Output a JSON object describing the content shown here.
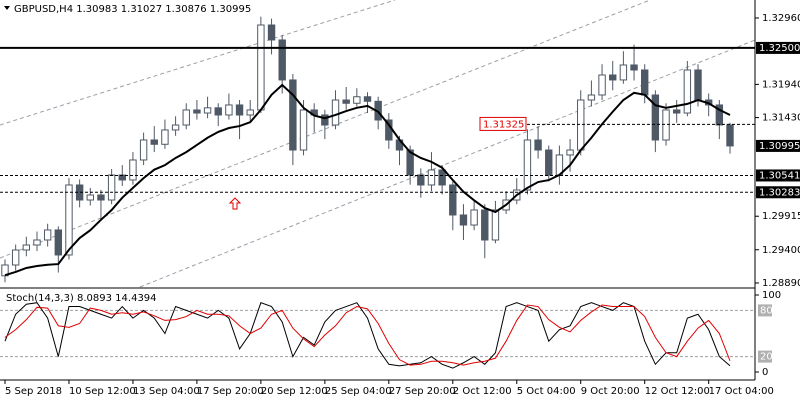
{
  "chart_data": [
    {
      "type": "candlestick",
      "title": "GBPUSD,H4  1.30983 1.31027 1.30876 1.30995",
      "categories": [
        "5 Sep 2018",
        null,
        null,
        null,
        null,
        null,
        "10 Sep 12:00",
        null,
        null,
        null,
        null,
        null,
        "13 Sep 04:00",
        null,
        null,
        null,
        null,
        null,
        "17 Sep 20:00",
        null,
        null,
        null,
        null,
        null,
        "20 Sep 12:00",
        null,
        null,
        null,
        null,
        null,
        "25 Sep 04:00",
        null,
        null,
        null,
        null,
        null,
        "27 Sep 20:00",
        null,
        null,
        null,
        null,
        null,
        "2 Oct 12:00",
        null,
        null,
        null,
        null,
        null,
        "5 Oct 04:00",
        null,
        null,
        null,
        null,
        null,
        "9 Oct 20:00",
        null,
        null,
        null,
        null,
        null,
        "12 Oct 12:00",
        null,
        null,
        null,
        null,
        null,
        "17 Oct 04:00",
        null,
        null
      ],
      "open": [
        1.29,
        1.29166,
        1.29396,
        1.29473,
        1.2955,
        1.29704,
        1.2932,
        1.30395,
        1.30164,
        1.30241,
        1.30164,
        1.30548,
        1.30472,
        1.30779,
        1.31086,
        1.3102,
        1.3124,
        1.31316,
        1.31547,
        1.315,
        1.3158,
        1.3147,
        1.31624,
        1.3147,
        1.31547,
        1.32852,
        1.32622,
        1.32008,
        1.30932,
        1.31547,
        1.3147,
        1.31316,
        1.317,
        1.3165,
        1.3175,
        1.3168,
        1.31393,
        1.31086,
        1.30932,
        1.30548,
        1.30395,
        1.30625,
        1.30395,
        1.29934,
        1.2978,
        1.30011,
        1.2955,
        1.30011,
        1.30164,
        1.30318,
        1.31086,
        1.30932,
        1.30548,
        1.30856,
        1.30932,
        1.317,
        1.31777,
        1.32084,
        1.32008,
        1.32238,
        1.32161,
        1.31777,
        1.31086,
        1.31547,
        1.315,
        1.32161,
        1.317,
        1.31624,
        1.31316
      ],
      "high": [
        1.2925,
        1.2948,
        1.296,
        1.2968,
        1.298,
        1.2976,
        1.305,
        1.3048,
        1.3035,
        1.3032,
        1.3064,
        1.307,
        1.309,
        1.312,
        1.313,
        1.314,
        1.3145,
        1.3165,
        1.317,
        1.3175,
        1.3165,
        1.318,
        1.317,
        1.317,
        1.3298,
        1.3295,
        1.327,
        1.321,
        1.317,
        1.3165,
        1.3155,
        1.3185,
        1.319,
        1.3188,
        1.3182,
        1.3175,
        1.315,
        1.3115,
        1.31,
        1.3065,
        1.309,
        1.307,
        1.3045,
        1.301,
        1.3015,
        1.301,
        1.3015,
        1.303,
        1.305,
        1.3125,
        1.313,
        1.31,
        1.31,
        1.311,
        1.3185,
        1.32,
        1.3225,
        1.323,
        1.3245,
        1.3255,
        1.3225,
        1.3185,
        1.3165,
        1.317,
        1.323,
        1.3225,
        1.318,
        1.317,
        1.3135
      ],
      "low": [
        1.289,
        1.2908,
        1.293,
        1.2938,
        1.2945,
        1.2905,
        1.2925,
        1.3005,
        1.3008,
        1.2985,
        1.301,
        1.3038,
        1.304,
        1.307,
        1.309,
        1.3095,
        1.3115,
        1.3125,
        1.314,
        1.3142,
        1.313,
        1.314,
        1.311,
        1.3138,
        1.315,
        1.324,
        1.318,
        1.307,
        1.3085,
        1.312,
        1.311,
        1.3125,
        1.3155,
        1.316,
        1.315,
        1.3125,
        1.3095,
        1.307,
        1.304,
        1.302,
        1.303,
        1.3025,
        1.297,
        1.2955,
        1.297,
        1.2927,
        1.295,
        1.2995,
        1.301,
        1.3025,
        1.308,
        1.3045,
        1.304,
        1.306,
        1.3085,
        1.316,
        1.317,
        1.3185,
        1.3195,
        1.32,
        1.3165,
        1.309,
        1.31,
        1.3135,
        1.3145,
        1.316,
        1.3145,
        1.311,
        1.30876
      ],
      "close": [
        1.29166,
        1.29396,
        1.29473,
        1.2955,
        1.29704,
        1.2932,
        1.30395,
        1.30164,
        1.30241,
        1.30164,
        1.30548,
        1.30472,
        1.30779,
        1.31086,
        1.3102,
        1.3124,
        1.31316,
        1.31547,
        1.315,
        1.3158,
        1.3147,
        1.31624,
        1.3147,
        1.31547,
        1.32852,
        1.32622,
        1.32008,
        1.30932,
        1.31547,
        1.3147,
        1.31316,
        1.317,
        1.3165,
        1.3175,
        1.3168,
        1.31393,
        1.31086,
        1.30932,
        1.30548,
        1.30395,
        1.30625,
        1.30395,
        1.29934,
        1.2978,
        1.30011,
        1.2955,
        1.30011,
        1.30164,
        1.30318,
        1.31086,
        1.30932,
        1.30548,
        1.30856,
        1.30932,
        1.317,
        1.31777,
        1.32084,
        1.32008,
        1.32238,
        1.32161,
        1.31777,
        1.31086,
        1.31547,
        1.315,
        1.32161,
        1.317,
        1.31624,
        1.31316,
        1.30995
      ],
      "candle_color": "#4f5966",
      "overlay": {
        "color": "#000000",
        "values": [
          1.2901,
          1.2906,
          1.2912,
          1.2915,
          1.2917,
          1.2918,
          1.294,
          1.2958,
          1.297,
          1.2986,
          1.3001,
          1.302,
          1.3035,
          1.305,
          1.3063,
          1.307,
          1.3081,
          1.309,
          1.3101,
          1.3112,
          1.3121,
          1.3127,
          1.313,
          1.3136,
          1.3155,
          1.3178,
          1.3193,
          1.3178,
          1.3158,
          1.3146,
          1.3142,
          1.3147,
          1.3153,
          1.3158,
          1.3161,
          1.3152,
          1.3132,
          1.3109,
          1.309,
          1.3081,
          1.3075,
          1.3066,
          1.3047,
          1.3029,
          1.3016,
          1.3004,
          1.2998,
          1.3009,
          1.3024,
          1.3035,
          1.3044,
          1.3047,
          1.3055,
          1.307,
          1.3093,
          1.3112,
          1.3133,
          1.3152,
          1.317,
          1.3181,
          1.3178,
          1.3162,
          1.3158,
          1.3161,
          1.3164,
          1.317,
          1.3165,
          1.3155,
          1.3147
        ]
      },
      "ylim": [
        1.28828,
        1.33236
      ],
      "yticks": [
        {
          "value": 1.3296,
          "label": "1.32960"
        },
        {
          "value": 1.3194,
          "label": "1.31940"
        },
        {
          "value": 1.3143,
          "label": "1.31430"
        },
        {
          "value": 1.29915,
          "label": "1.29915"
        },
        {
          "value": 1.294,
          "label": "1.29400"
        },
        {
          "value": 1.2889,
          "label": "1.28890"
        }
      ],
      "levels": [
        {
          "value": 1.325,
          "label": "1.32500",
          "style": "solid"
        },
        {
          "value": 1.30541,
          "label": "1.30541",
          "style": "dashed"
        },
        {
          "value": 1.30283,
          "label": "1.30283",
          "style": "dashed"
        }
      ],
      "price": {
        "value": 1.30995,
        "label": "1.30995"
      },
      "annotation": {
        "value": 1.31325,
        "label": "1.31325",
        "color": "#e00000"
      }
    },
    {
      "type": "line",
      "title": "Stoch(14,3,3) 8.0893 14.4394",
      "series": [
        {
          "color": "#000000",
          "values": [
            40,
            75,
            88,
            90,
            70,
            20,
            85,
            85,
            80,
            75,
            70,
            85,
            70,
            80,
            70,
            50,
            85,
            80,
            75,
            70,
            80,
            70,
            30,
            50,
            90,
            85,
            65,
            20,
            45,
            35,
            65,
            80,
            85,
            90,
            70,
            30,
            10,
            8,
            10,
            12,
            20,
            10,
            5,
            12,
            20,
            10,
            25,
            85,
            90,
            85,
            80,
            40,
            55,
            60,
            85,
            90,
            85,
            80,
            90,
            85,
            40,
            10,
            25,
            25,
            70,
            75,
            55,
            20,
            8.0893
          ]
        },
        {
          "color": "#e00000",
          "values": [
            45,
            55,
            68,
            84,
            83,
            60,
            58,
            63,
            83,
            80,
            75,
            77,
            75,
            78,
            73,
            67,
            68,
            72,
            80,
            75,
            75,
            73,
            60,
            50,
            57,
            75,
            80,
            57,
            43,
            33,
            48,
            60,
            77,
            85,
            82,
            63,
            37,
            16,
            9,
            10,
            14,
            14,
            12,
            9,
            12,
            14,
            18,
            40,
            67,
            87,
            85,
            68,
            58,
            52,
            67,
            78,
            87,
            85,
            85,
            85,
            72,
            45,
            25,
            20,
            40,
            57,
            67,
            50,
            14.4394
          ]
        }
      ],
      "ylim": [
        -10.4,
        106.5
      ],
      "yticks": [
        100,
        0
      ],
      "levels": [
        80,
        20
      ]
    }
  ]
}
